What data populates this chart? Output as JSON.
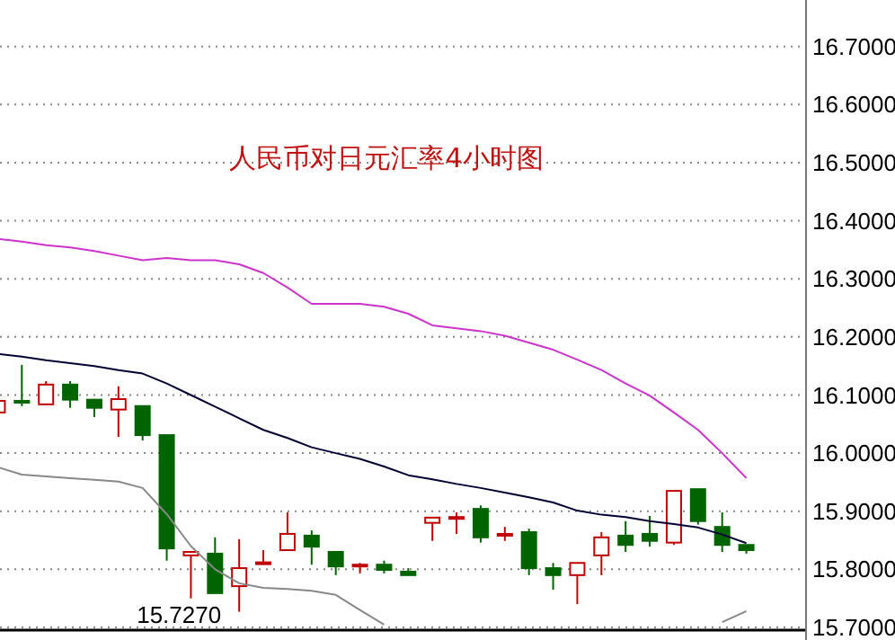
{
  "chart_data": {
    "type": "candlestick",
    "title": "人民币对日元汇率4小时图",
    "categories": [
      null,
      null,
      null,
      null,
      null,
      null,
      null,
      null,
      null,
      null,
      null,
      null,
      null,
      null,
      null,
      null,
      null,
      null,
      null,
      null,
      null,
      null,
      null,
      null,
      null,
      null,
      null,
      null,
      null,
      null,
      null,
      null
    ],
    "ohlc": [
      [
        16.07,
        16.09,
        16.07,
        16.09
      ],
      [
        16.09,
        16.152,
        16.081,
        16.088
      ],
      [
        16.084,
        16.124,
        16.084,
        16.118
      ],
      [
        16.118,
        16.124,
        16.078,
        16.092
      ],
      [
        16.092,
        16.092,
        16.062,
        16.078
      ],
      [
        16.075,
        16.115,
        16.028,
        16.093
      ],
      [
        16.081,
        16.081,
        16.022,
        16.031
      ],
      [
        16.031,
        16.031,
        15.815,
        15.836
      ],
      [
        15.824,
        15.83,
        15.75,
        15.83
      ],
      [
        15.827,
        15.855,
        15.759,
        15.759
      ],
      [
        15.771,
        15.852,
        15.727,
        15.802
      ],
      [
        15.81,
        15.833,
        15.808,
        15.812
      ],
      [
        15.833,
        15.898,
        15.833,
        15.861
      ],
      [
        15.858,
        15.867,
        15.808,
        15.839
      ],
      [
        15.83,
        15.83,
        15.79,
        15.805
      ],
      [
        15.805,
        15.811,
        15.793,
        15.808
      ],
      [
        15.808,
        15.815,
        15.793,
        15.799
      ],
      [
        15.796,
        15.802,
        15.79,
        15.79
      ],
      [
        15.88,
        15.889,
        15.849,
        15.889
      ],
      [
        15.888,
        15.898,
        15.861,
        15.89
      ],
      [
        15.904,
        15.91,
        15.846,
        15.855
      ],
      [
        15.859,
        15.873,
        15.849,
        15.861
      ],
      [
        15.864,
        15.87,
        15.79,
        15.802
      ],
      [
        15.802,
        15.811,
        15.765,
        15.79
      ],
      [
        15.79,
        15.811,
        15.74,
        15.811
      ],
      [
        15.824,
        15.864,
        15.79,
        15.855
      ],
      [
        15.858,
        15.883,
        15.83,
        15.842
      ],
      [
        15.861,
        15.892,
        15.839,
        15.849
      ],
      [
        15.846,
        15.935,
        15.842,
        15.935
      ],
      [
        15.938,
        15.938,
        15.877,
        15.883
      ],
      [
        15.873,
        15.898,
        15.83,
        15.842
      ],
      [
        15.842,
        15.842,
        15.827,
        15.833
      ]
    ],
    "series": [
      {
        "type": "line",
        "color": "#cc33cc",
        "values": [
          16.369,
          16.364,
          16.358,
          16.354,
          16.348,
          16.34,
          16.332,
          16.336,
          16.332,
          16.332,
          16.325,
          16.31,
          16.285,
          16.257,
          16.257,
          16.257,
          16.252,
          16.24,
          16.22,
          16.215,
          16.21,
          16.202,
          16.19,
          16.178,
          16.161,
          16.143,
          16.12,
          16.099,
          16.07,
          16.04,
          16.0,
          15.957
        ]
      },
      {
        "type": "line",
        "color": "#000033",
        "values": [
          16.171,
          16.166,
          16.16,
          16.155,
          16.15,
          16.143,
          16.137,
          16.12,
          16.1,
          16.08,
          16.06,
          16.04,
          16.026,
          16.01,
          16.0,
          15.99,
          15.977,
          15.962,
          15.955,
          15.947,
          15.94,
          15.932,
          15.924,
          15.915,
          15.901,
          15.894,
          15.89,
          15.883,
          15.878,
          15.872,
          15.86,
          15.845
        ]
      },
      {
        "type": "line",
        "color": "#888888",
        "values": [
          15.976,
          15.963,
          15.96,
          15.957,
          15.954,
          15.951,
          15.94,
          15.895,
          15.84,
          15.8,
          15.776,
          15.768,
          15.766,
          15.763,
          15.756,
          15.73,
          15.705,
          null,
          null,
          null,
          null,
          null,
          null,
          null,
          null,
          null,
          null,
          null,
          null,
          null,
          15.709,
          15.728
        ]
      }
    ],
    "ylim": [
      15.7,
      16.78
    ],
    "yticks": [
      {
        "value": 15.7,
        "label": "15.7000"
      },
      {
        "value": 15.8,
        "label": "15.8000"
      },
      {
        "value": 15.9,
        "label": "15.9000"
      },
      {
        "value": 16.0,
        "label": "16.0000"
      },
      {
        "value": 16.1,
        "label": "16.1000"
      },
      {
        "value": 16.2,
        "label": "16.2000"
      },
      {
        "value": 16.3,
        "label": "16.3000"
      },
      {
        "value": 16.4,
        "label": "16.4000"
      },
      {
        "value": 16.5,
        "label": "16.5000"
      },
      {
        "value": 16.6,
        "label": "16.6000"
      },
      {
        "value": 16.7,
        "label": "16.7000"
      }
    ],
    "grid": "y",
    "annotations": [
      "15.7270"
    ]
  }
}
